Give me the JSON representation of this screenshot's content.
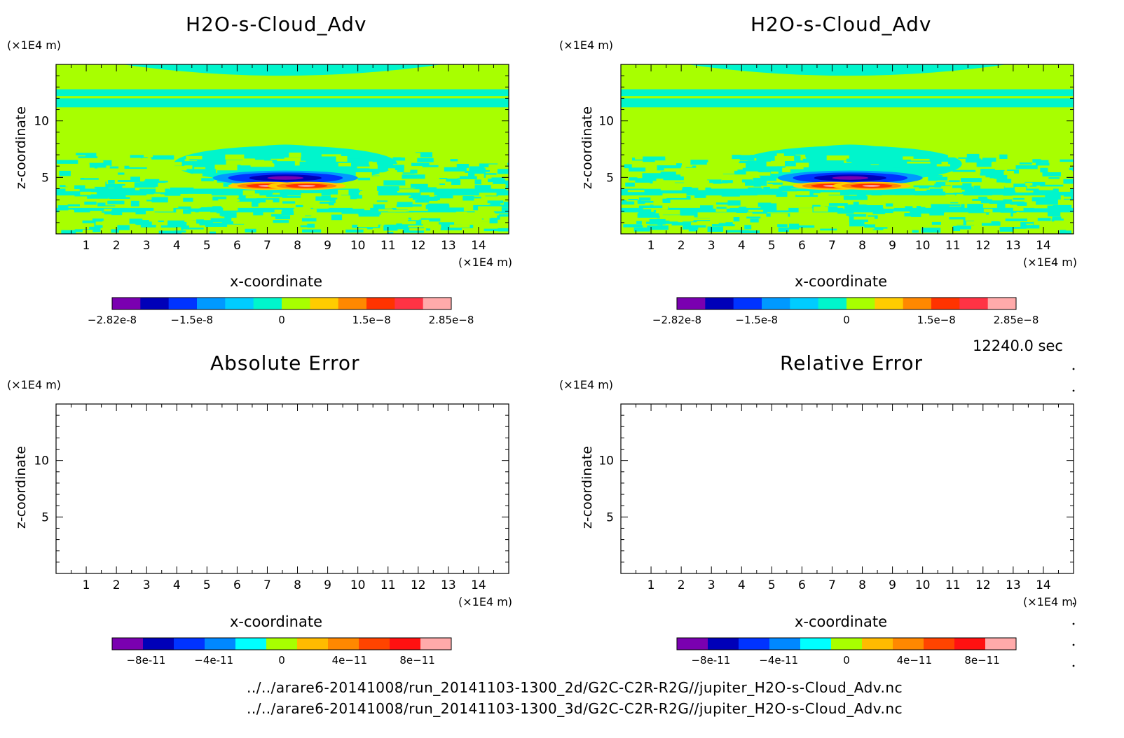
{
  "panels": [
    {
      "id": "tl",
      "title": "H2O-s-Cloud_Adv",
      "z_unit": "(×1E4 m)",
      "x_unit": "(×1E4 m)",
      "xlabel": "x-coordinate",
      "ylabel": "z-coordinate",
      "colorbar_ticks": [
        "-2.82e-8",
        "-1.5e-8",
        "0",
        "1.5e-8",
        "2.85e-8"
      ]
    },
    {
      "id": "tr",
      "title": "H2O-s-Cloud_Adv",
      "z_unit": "(×1E4 m)",
      "x_unit": "(×1E4 m)",
      "xlabel": "x-coordinate",
      "ylabel": "z-coordinate",
      "colorbar_ticks": [
        "-2.82e-8",
        "-1.5e-8",
        "0",
        "1.5e-8",
        "2.85e-8"
      ]
    },
    {
      "id": "bl",
      "title": "Absolute Error",
      "z_unit": "(×1E4 m)",
      "x_unit": "(×1E4 m)",
      "xlabel": "x-coordinate",
      "ylabel": "z-coordinate",
      "colorbar_ticks": [
        "-8e-11",
        "-4e-11",
        "0",
        "4e-11",
        "8e-11"
      ]
    },
    {
      "id": "br",
      "title": "Relative Error",
      "z_unit": "(×1E4 m)",
      "x_unit": "(×1E4 m)",
      "xlabel": "x-coordinate",
      "ylabel": "z-coordinate",
      "colorbar_ticks": [
        "-8e-11",
        "-4e-11",
        "0",
        "4e-11",
        "8e-11"
      ]
    }
  ],
  "time_label": "12240.0 sec",
  "footer": {
    "line1": "../../arare6-20141008/run_20141103-1300_2d/G2C-C2R-R2G//jupiter_H2O-s-Cloud_Adv.nc",
    "line2": "../../arare6-20141008/run_20141103-1300_3d/G2C-C2R-R2G//jupiter_H2O-s-Cloud_Adv.nc"
  },
  "chart_data": [
    {
      "type": "heatmap",
      "title": "H2O-s-Cloud_Adv",
      "xlabel": "x-coordinate",
      "ylabel": "z-coordinate",
      "xlim": [
        0,
        15
      ],
      "ylim": [
        0,
        15
      ],
      "x_ticks": [
        1,
        2,
        3,
        4,
        5,
        6,
        7,
        8,
        9,
        10,
        11,
        12,
        13,
        14
      ],
      "y_ticks": [
        5,
        10
      ],
      "color_range": [
        -2.82e-08,
        2.85e-08
      ],
      "features": "near-zero field with negative core near x 7.5 z 5 and two positive lobes near x 7 and x 8.3 at z 4.3"
    },
    {
      "type": "heatmap",
      "title": "H2O-s-Cloud_Adv",
      "xlabel": "x-coordinate",
      "ylabel": "z-coordinate",
      "xlim": [
        0,
        15
      ],
      "ylim": [
        0,
        15
      ],
      "x_ticks": [
        1,
        2,
        3,
        4,
        5,
        6,
        7,
        8,
        9,
        10,
        11,
        12,
        13,
        14
      ],
      "y_ticks": [
        5,
        10
      ],
      "color_range": [
        -2.82e-08,
        2.85e-08
      ]
    },
    {
      "type": "heatmap",
      "title": "Absolute Error",
      "xlabel": "x-coordinate",
      "ylabel": "z-coordinate",
      "xlim": [
        0,
        15
      ],
      "ylim": [
        0,
        15
      ],
      "x_ticks": [
        1,
        2,
        3,
        4,
        5,
        6,
        7,
        8,
        9,
        10,
        11,
        12,
        13,
        14
      ],
      "y_ticks": [
        5,
        10
      ],
      "color_range": [
        -1e-10,
        1e-10
      ],
      "values": "empty"
    },
    {
      "type": "heatmap",
      "title": "Relative Error",
      "xlabel": "x-coordinate",
      "ylabel": "z-coordinate",
      "xlim": [
        0,
        15
      ],
      "ylim": [
        0,
        15
      ],
      "x_ticks": [
        1,
        2,
        3,
        4,
        5,
        6,
        7,
        8,
        9,
        10,
        11,
        12,
        13,
        14
      ],
      "y_ticks": [
        5,
        10
      ],
      "color_range": [
        -1e-10,
        1e-10
      ],
      "values": "empty"
    }
  ],
  "colors": {
    "field_green": "#a8ff00",
    "field_cyan": "#00f5cc",
    "colorbar_top": [
      "#7a00b0",
      "#0000b8",
      "#0033ff",
      "#0099ff",
      "#00ccff",
      "#00f5cc",
      "#a8ff00",
      "#ffcc00",
      "#ff8800",
      "#ff3300",
      "#ff3344",
      "#ffaaaa"
    ],
    "colorbar_bottom": [
      "#7a00b0",
      "#0000b8",
      "#0033ff",
      "#0088ff",
      "#00ffff",
      "#a8ff00",
      "#ffbb00",
      "#ff8800",
      "#ff4400",
      "#ff1111",
      "#ffaaaa"
    ]
  }
}
